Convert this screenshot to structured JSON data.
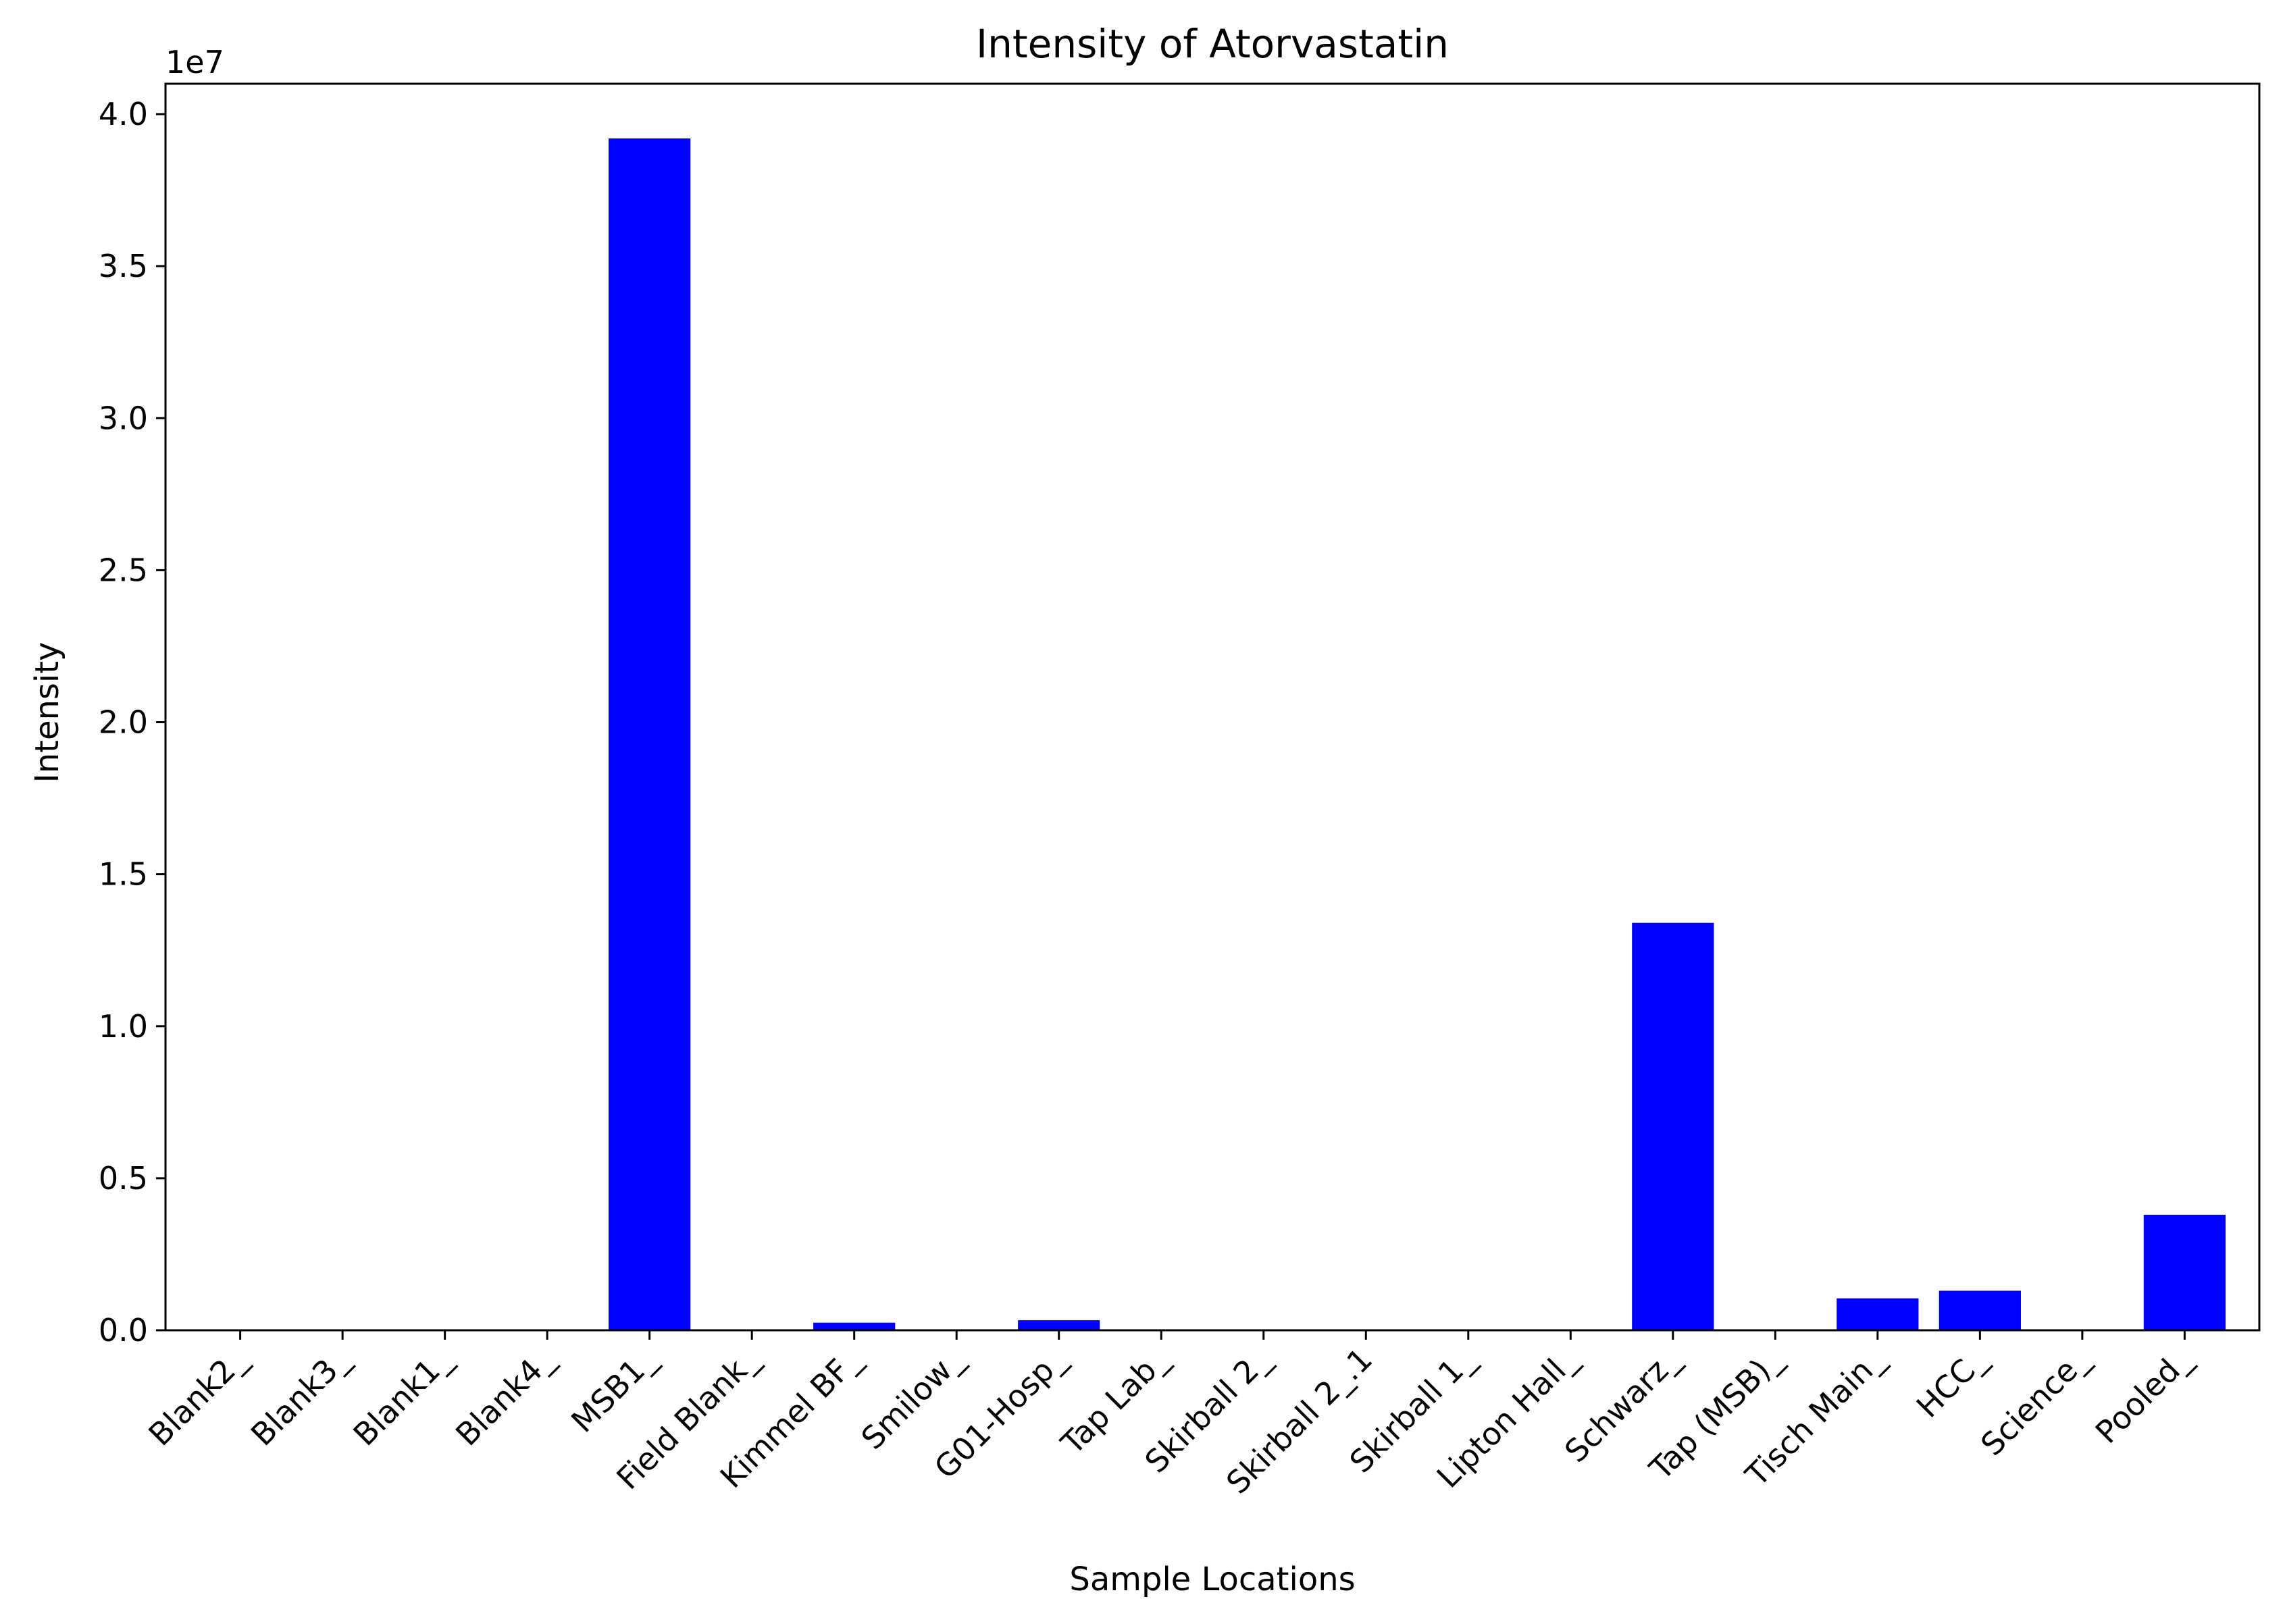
{
  "chart_data": {
    "type": "bar",
    "title": "Intensity of Atorvastatin",
    "xlabel": "Sample Locations",
    "ylabel": "Intensity",
    "y_offset_label": "1e7",
    "ylim": [
      0,
      41000000
    ],
    "yticks": [
      0,
      5000000,
      10000000,
      15000000,
      20000000,
      25000000,
      30000000,
      35000000,
      40000000
    ],
    "ytick_labels": [
      "0.0",
      "0.5",
      "1.0",
      "1.5",
      "2.0",
      "2.5",
      "3.0",
      "3.5",
      "4.0"
    ],
    "categories": [
      "Blank2_",
      "Blank3_",
      "Blank1_",
      "Blank4_",
      "MSB1_",
      "Field Blank_",
      "Kimmel BF_",
      "Smilow_",
      "G01-Hosp_",
      "Tap Lab_",
      "Skirball 2_",
      "Skirball 2_.1",
      "Skirball 1_",
      "Lipton Hall_",
      "Schwarz_",
      "Tap (MSB)_",
      "Tisch Main_",
      "HCC_",
      "Science_",
      "Pooled_"
    ],
    "values": [
      0,
      0,
      0,
      0,
      39200000,
      0,
      250000,
      0,
      330000,
      0,
      0,
      0,
      0,
      0,
      13400000,
      0,
      1050000,
      1300000,
      0,
      3800000
    ],
    "bar_color": "#0000ff",
    "grid": false,
    "legend": "none"
  }
}
